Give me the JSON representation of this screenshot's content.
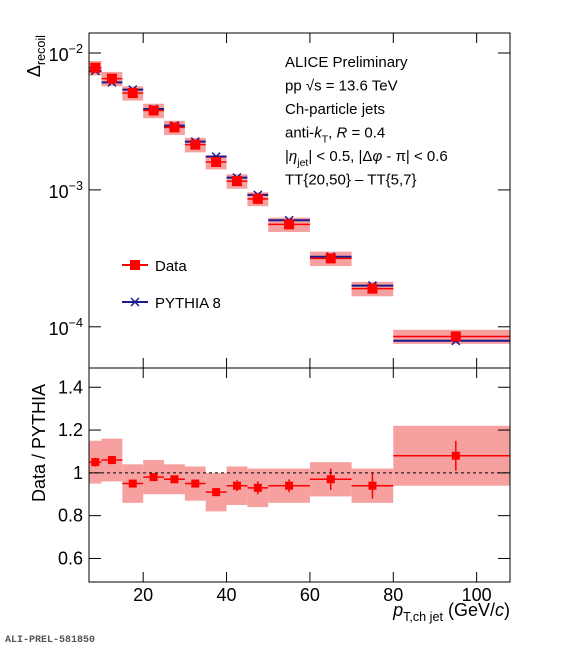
{
  "chart_data": [
    {
      "type": "spectrum",
      "ylabel": [
        "Δ",
        {
          "sub": "recoil"
        }
      ],
      "log_y": true,
      "xlim": [
        7,
        108
      ],
      "ylim": [
        5e-05,
        0.014
      ],
      "yticks": [
        {
          "value": 0.0001,
          "label": [
            "10",
            {
              "sup": "−4"
            }
          ]
        },
        {
          "value": 0.001,
          "label": [
            "10",
            {
              "sup": "−3"
            }
          ]
        },
        {
          "value": 0.01,
          "label": [
            "10",
            {
              "sup": "−2"
            }
          ]
        }
      ],
      "bins": [
        7,
        10,
        15,
        20,
        25,
        30,
        35,
        40,
        45,
        50,
        60,
        70,
        80,
        110
      ],
      "x": [
        8.5,
        12.5,
        17.5,
        22.5,
        27.5,
        32.5,
        37.5,
        42.5,
        47.5,
        55,
        65,
        75,
        95
      ],
      "series": [
        {
          "name": "Data",
          "color": "#ff0000",
          "sys_color": "#f6a0a0",
          "values": [
            0.0078,
            0.0065,
            0.0051,
            0.0038,
            0.00286,
            0.00214,
            0.0016,
            0.00116,
            0.00086,
            0.00056,
            0.000316,
            0.00019,
            8.5e-05
          ],
          "sys_errors": [
            0.00094,
            0.00078,
            0.00061,
            0.00046,
            0.00034,
            0.00026,
            0.00019,
            0.00014,
            0.0001,
            6.7e-05,
            3.8e-05,
            2.3e-05,
            1e-05
          ]
        },
        {
          "name": "PYTHIA 8",
          "color": "#1a1a8c",
          "values": [
            0.0074,
            0.0061,
            0.0054,
            0.0039,
            0.00295,
            0.00225,
            0.00175,
            0.00123,
            0.00092,
            0.0006,
            0.000325,
            0.0002,
            7.9e-05
          ]
        }
      ],
      "annotations": [
        [
          "ALICE Preliminary"
        ],
        [
          "pp √s = 13.6 TeV"
        ],
        [
          "Ch-particle jets"
        ],
        [
          "anti-",
          {
            "italic": "k"
          },
          {
            "sub": "T"
          },
          ", ",
          {
            "italic": "R"
          },
          " = 0.4"
        ],
        [
          "|",
          {
            "italic": "η"
          },
          {
            "sub": "jet"
          },
          "| < 0.5, |Δ",
          {
            "italic": "φ"
          },
          " - π| < 0.6"
        ],
        [
          "TT{20,50} – TT{5,7}"
        ]
      ]
    },
    {
      "type": "ratio",
      "ylabel": [
        "Data / PYTHIA"
      ],
      "xlabel": [
        {
          "italic": "p"
        },
        {
          "sub": "T,ch jet"
        },
        " (GeV/",
        {
          "italic": "c"
        },
        ")"
      ],
      "xlim": [
        7,
        108
      ],
      "ylim": [
        0.49,
        1.49
      ],
      "xticks": [
        20,
        40,
        60,
        80,
        100
      ],
      "yticks": [
        0.6,
        0.8,
        1,
        1.2,
        1.4
      ],
      "reference_line": 1,
      "bins": [
        7,
        10,
        15,
        20,
        25,
        30,
        35,
        40,
        45,
        50,
        60,
        70,
        80,
        110
      ],
      "x": [
        8.5,
        12.5,
        17.5,
        22.5,
        27.5,
        32.5,
        37.5,
        42.5,
        47.5,
        55,
        65,
        75,
        95
      ],
      "color": "#ff0000",
      "sys_color": "#f6a0a0",
      "values": [
        1.05,
        1.06,
        0.95,
        0.98,
        0.97,
        0.95,
        0.91,
        0.94,
        0.93,
        0.94,
        0.97,
        0.94,
        1.08
      ],
      "errors": [
        0.02,
        0.02,
        0.015,
        0.015,
        0.015,
        0.015,
        0.02,
        0.025,
        0.03,
        0.03,
        0.05,
        0.06,
        0.07
      ],
      "sys_errors": [
        0.1,
        0.1,
        0.09,
        0.08,
        0.07,
        0.08,
        0.09,
        0.09,
        0.09,
        0.08,
        0.08,
        0.08,
        0.14
      ]
    }
  ],
  "footer": "ALI-PREL-581850"
}
